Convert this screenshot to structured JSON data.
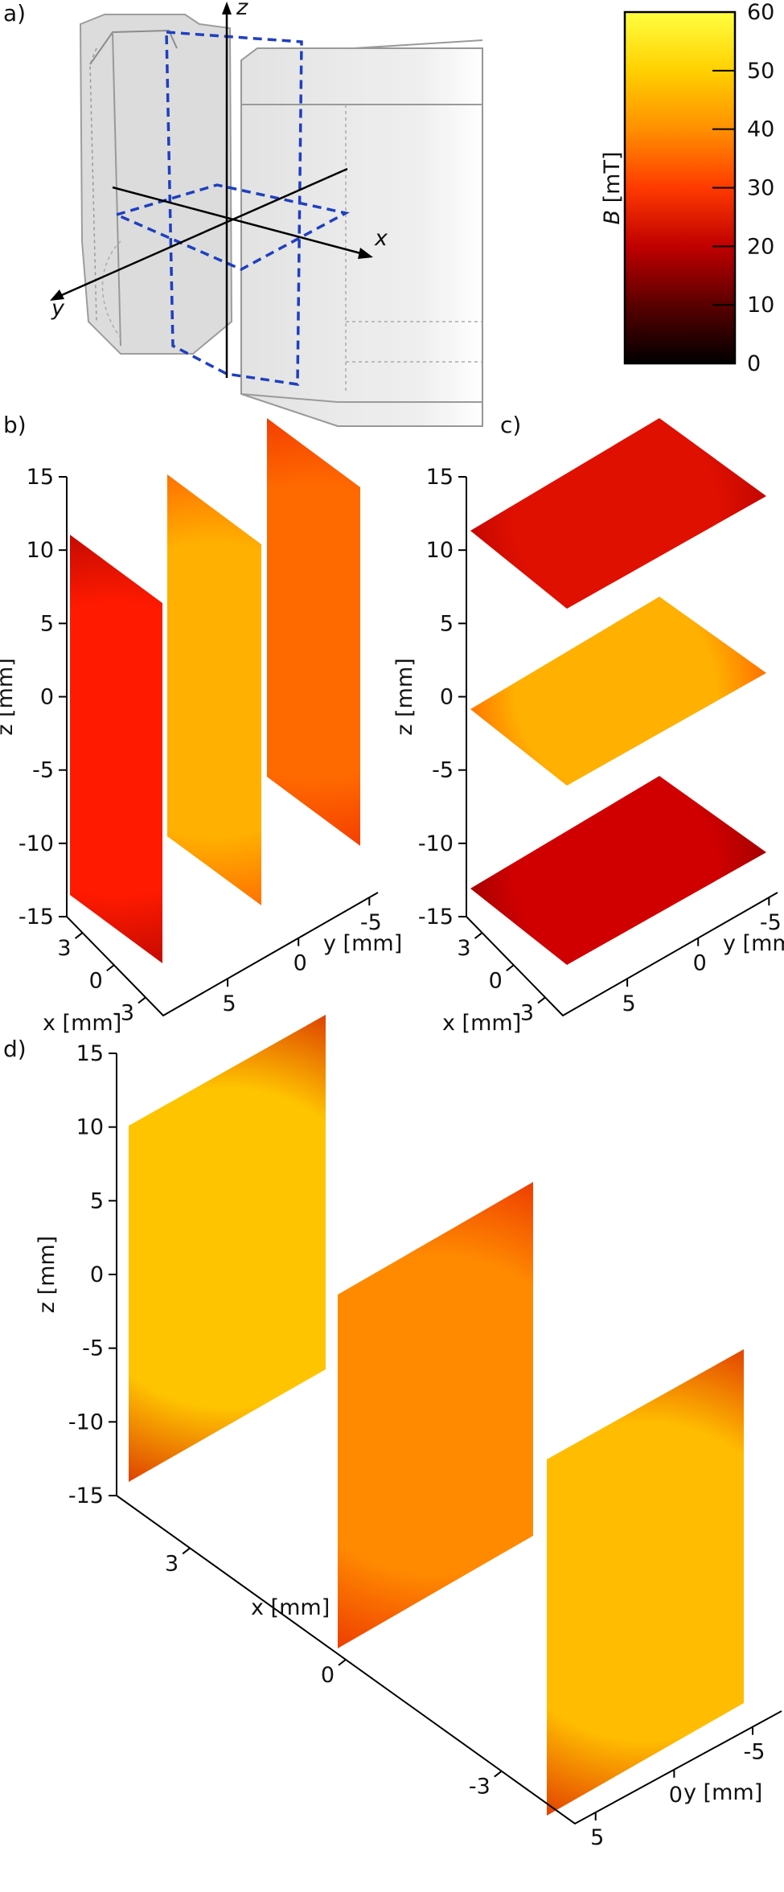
{
  "panels": {
    "a": {
      "label": "a)"
    },
    "b": {
      "label": "b)"
    },
    "c": {
      "label": "c)"
    },
    "d": {
      "label": "d)"
    }
  },
  "schematic": {
    "axis_labels": {
      "x": "x",
      "y": "y",
      "z": "z"
    },
    "colors": {
      "magnet": "#d9d9d9",
      "magnet_edge": "#8c8c8c",
      "planes": "#1f3fbf",
      "axes": "#000000"
    }
  },
  "colorbar": {
    "label_symbol": "B",
    "label_unit": " [mT]",
    "ticks": [
      "0",
      "10",
      "20",
      "30",
      "40",
      "50",
      "60"
    ],
    "range": [
      0,
      60
    ],
    "colormap": [
      "#000000",
      "#5a0000",
      "#c00000",
      "#ff3a00",
      "#ff9000",
      "#ffd000",
      "#ffff40"
    ]
  },
  "axis_text": {
    "z_label": "z [mm]",
    "x_label": "x [mm]",
    "y_label": "y [mm]",
    "z_ticks": [
      "15",
      "10",
      "5",
      "0",
      "-5",
      "-10",
      "-15"
    ],
    "x_ticks_small": [
      "3",
      "0",
      "-3"
    ],
    "y_ticks_small": [
      "5",
      "0",
      "-5"
    ],
    "x_ticks_large": [
      "3",
      "0",
      "-3"
    ],
    "y_ticks_large": [
      "5",
      "0",
      "-5"
    ]
  },
  "chart_data": [
    {
      "panel": "b",
      "type": "heatmap",
      "description_planes": "yz-planes at x = 3, 0, -3 mm",
      "planes": [
        {
          "x": 3,
          "center_color": "#ff1a00",
          "edge_color": "#a00000"
        },
        {
          "x": 0,
          "center_color": "#ffb000",
          "edge_color": "#ff4800"
        },
        {
          "x": -3,
          "center_color": "#ff6a00",
          "edge_color": "#ee2200"
        }
      ],
      "zlim": [
        -15,
        15
      ],
      "xlim": [
        -3,
        3
      ],
      "ylim": [
        -5,
        5
      ]
    },
    {
      "panel": "c",
      "type": "heatmap",
      "description_planes": "xy-planes at z = 10, 0, -10 mm",
      "planes": [
        {
          "z": 10,
          "center_color": "#e01000",
          "edge_color": "#b00000"
        },
        {
          "z": 0,
          "center_color": "#ffb000",
          "edge_color": "#ff4a00"
        },
        {
          "z": -10,
          "center_color": "#d00000",
          "edge_color": "#8a0000"
        }
      ],
      "zlim": [
        -15,
        15
      ],
      "xlim": [
        -3,
        3
      ],
      "ylim": [
        -5,
        5
      ]
    },
    {
      "panel": "d",
      "type": "heatmap",
      "description_planes": "yz-planes at x = 3, 0, -3 mm",
      "planes": [
        {
          "x": 3,
          "center_color": "#ffc400",
          "edge_color": "#d01000"
        },
        {
          "x": 0,
          "center_color": "#ff8a00",
          "edge_color": "#e82000"
        },
        {
          "x": -3,
          "center_color": "#ffbc00",
          "edge_color": "#d81400"
        }
      ],
      "zlim": [
        -15,
        15
      ],
      "xlim": [
        -3,
        3
      ],
      "ylim": [
        -5,
        5
      ]
    }
  ]
}
